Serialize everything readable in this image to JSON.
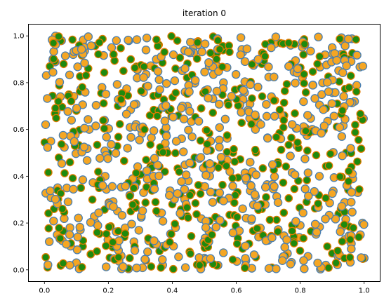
{
  "chart_data": {
    "type": "scatter",
    "title": "iteration 0",
    "xlabel": "",
    "ylabel": "",
    "xlim": [
      -0.05,
      1.05
    ],
    "ylim": [
      -0.05,
      1.05
    ],
    "xticks": [
      0.0,
      0.2,
      0.4,
      0.6,
      0.8,
      1.0
    ],
    "yticks": [
      0.0,
      0.2,
      0.4,
      0.6,
      0.8,
      1.0
    ],
    "xtick_labels": [
      "0.0",
      "0.2",
      "0.4",
      "0.6",
      "0.8",
      "1.0"
    ],
    "ytick_labels": [
      "0.0",
      "0.2",
      "0.4",
      "0.6",
      "0.8",
      "1.0"
    ],
    "grid": false,
    "legend": "none",
    "point_count_estimate": 1000,
    "distribution": "uniform random in [0,1]×[0,1]",
    "colors": {
      "blue_edge": "#4a7fb0",
      "orange_fill": "#f5a623",
      "orange_edge": "#e07b00",
      "green_fill": "#1e8a0e",
      "axes": "#000000"
    },
    "series": [
      {
        "style": "orange-fill-blue-edge",
        "points": [
          [
            0.03,
            0.97
          ],
          [
            0.09,
            0.92
          ],
          [
            0.21,
            0.95
          ],
          [
            0.35,
            0.9
          ],
          [
            0.47,
            0.97
          ],
          [
            0.62,
            0.93
          ],
          [
            0.77,
            0.96
          ],
          [
            0.9,
            0.95
          ],
          [
            0.05,
            0.74
          ],
          [
            0.18,
            0.78
          ],
          [
            0.29,
            0.82
          ],
          [
            0.44,
            0.76
          ],
          [
            0.56,
            0.8
          ],
          [
            0.71,
            0.74
          ],
          [
            0.84,
            0.79
          ],
          [
            0.97,
            0.72
          ],
          [
            0.02,
            0.55
          ],
          [
            0.14,
            0.6
          ],
          [
            0.26,
            0.52
          ],
          [
            0.38,
            0.58
          ],
          [
            0.52,
            0.55
          ],
          [
            0.66,
            0.6
          ],
          [
            0.79,
            0.53
          ],
          [
            0.93,
            0.57
          ],
          [
            0.07,
            0.35
          ],
          [
            0.19,
            0.4
          ],
          [
            0.31,
            0.33
          ],
          [
            0.45,
            0.38
          ],
          [
            0.58,
            0.42
          ],
          [
            0.7,
            0.36
          ],
          [
            0.86,
            0.4
          ],
          [
            0.98,
            0.33
          ],
          [
            0.04,
            0.15
          ],
          [
            0.16,
            0.2
          ],
          [
            0.28,
            0.12
          ],
          [
            0.41,
            0.18
          ],
          [
            0.54,
            0.22
          ],
          [
            0.67,
            0.14
          ],
          [
            0.8,
            0.19
          ],
          [
            0.94,
            0.13
          ],
          [
            0.1,
            0.03
          ],
          [
            0.24,
            0.06
          ],
          [
            0.37,
            0.02
          ],
          [
            0.5,
            0.05
          ],
          [
            0.63,
            0.04
          ],
          [
            0.76,
            0.07
          ],
          [
            0.88,
            0.02
          ],
          [
            1.0,
            0.05
          ]
        ]
      },
      {
        "style": "green-fill-orange-edge",
        "points": [
          [
            0.06,
            0.88
          ],
          [
            0.12,
            0.97
          ],
          [
            0.27,
            0.9
          ],
          [
            0.41,
            0.86
          ],
          [
            0.53,
            0.92
          ],
          [
            0.68,
            0.88
          ],
          [
            0.81,
            0.92
          ],
          [
            0.95,
            0.9
          ],
          [
            0.1,
            0.68
          ],
          [
            0.23,
            0.7
          ],
          [
            0.33,
            0.66
          ],
          [
            0.49,
            0.69
          ],
          [
            0.61,
            0.71
          ],
          [
            0.75,
            0.66
          ],
          [
            0.88,
            0.69
          ],
          [
            0.99,
            0.65
          ],
          [
            0.08,
            0.46
          ],
          [
            0.2,
            0.5
          ],
          [
            0.34,
            0.45
          ],
          [
            0.47,
            0.48
          ],
          [
            0.59,
            0.5
          ],
          [
            0.73,
            0.46
          ],
          [
            0.85,
            0.49
          ],
          [
            0.96,
            0.44
          ],
          [
            0.03,
            0.26
          ],
          [
            0.15,
            0.3
          ],
          [
            0.27,
            0.25
          ],
          [
            0.4,
            0.28
          ],
          [
            0.55,
            0.3
          ],
          [
            0.68,
            0.26
          ],
          [
            0.82,
            0.29
          ],
          [
            0.92,
            0.24
          ],
          [
            0.12,
            0.1
          ],
          [
            0.25,
            0.14
          ],
          [
            0.36,
            0.08
          ],
          [
            0.5,
            0.11
          ],
          [
            0.62,
            0.09
          ],
          [
            0.78,
            0.12
          ],
          [
            0.9,
            0.07
          ],
          [
            0.01,
            0.01
          ]
        ]
      }
    ]
  }
}
